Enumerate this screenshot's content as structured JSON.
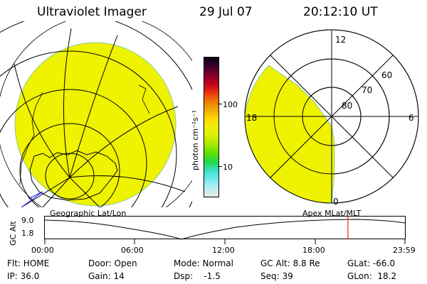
{
  "header": {
    "title": "Ultraviolet Imager",
    "date": "29 Jul 07",
    "time": "20:12:10 UT"
  },
  "colorbar": {
    "unit_label": "photon cm⁻²s⁻¹",
    "ticks": [
      "100",
      "10"
    ],
    "colors": [
      "#0a0010",
      "#3b0030",
      "#80002a",
      "#c00020",
      "#e83010",
      "#f07800",
      "#f0a800",
      "#ffd800",
      "#f0f000",
      "#d8f000",
      "#a8e800",
      "#60e000",
      "#20d848",
      "#40e0c8",
      "#70e8f0",
      "#b8f0f0",
      "#e8e8e8"
    ]
  },
  "geo_map": {
    "fill_color": "#eff200",
    "label": "Geographic Lat/Lon"
  },
  "polar_map": {
    "fill_color": "#eff200",
    "label": "Apex MLat/MLT",
    "mlt_labels": [
      "12",
      "18",
      "6",
      "0"
    ],
    "lat_labels": [
      "60",
      "70",
      "80"
    ]
  },
  "altitude_plot": {
    "y_axis_label": "GC Alt",
    "y_ticks": [
      "9.0",
      "1.8"
    ],
    "x_ticks": [
      "00:00",
      "06:00",
      "12:00",
      "18:00",
      "23:59"
    ],
    "marker_color": "#e00000",
    "marker_time_hours": 20.2
  },
  "status": {
    "flt": "Flt: HOME",
    "door": "Door: Open",
    "mode": "Mode: Normal",
    "gc_alt": "GC Alt: 8.8 Re",
    "glat": "GLat: -66.0",
    "ip": "IP: 36.0",
    "gain": "Gain: 14",
    "dsp": "Dsp:    -1.5",
    "seq": "Seq: 39",
    "glon": "GLon:  18.2"
  }
}
